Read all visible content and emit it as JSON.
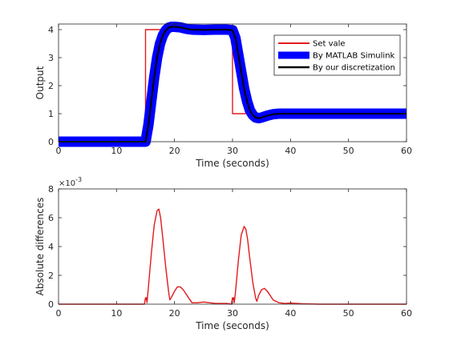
{
  "chart_data": [
    {
      "type": "line",
      "xlabel": "Time (seconds)",
      "ylabel": "Output",
      "xlim": [
        0,
        60
      ],
      "ylim": [
        0,
        4.2
      ],
      "xticks": [
        0,
        10,
        20,
        30,
        40,
        50,
        60
      ],
      "yticks": [
        0,
        1,
        2,
        3,
        4
      ],
      "grid": false,
      "legend_position": "top-right",
      "series": [
        {
          "name": "Set vale",
          "color": "#e41a1c",
          "style": "step",
          "x": [
            0,
            15,
            15,
            30,
            30,
            60
          ],
          "y": [
            0,
            0,
            4,
            4,
            1,
            1
          ]
        },
        {
          "name": "By MATLAB Simulink",
          "color": "#0000ff",
          "style": "thick",
          "x": [
            0,
            15,
            15.5,
            16,
            16.5,
            17,
            17.5,
            18,
            18.5,
            19,
            19.5,
            20,
            21,
            22,
            23,
            25,
            27,
            29,
            30,
            30.5,
            31,
            31.5,
            32,
            32.5,
            33,
            33.5,
            34,
            34.5,
            35,
            36,
            37,
            38,
            40,
            45,
            50,
            55,
            60
          ],
          "y": [
            0,
            0,
            0.6,
            1.45,
            2.3,
            3.0,
            3.5,
            3.8,
            3.98,
            4.07,
            4.1,
            4.1,
            4.08,
            4.03,
            4.0,
            3.99,
            4.0,
            4.0,
            3.98,
            3.7,
            3.1,
            2.5,
            1.9,
            1.45,
            1.12,
            0.95,
            0.86,
            0.84,
            0.86,
            0.93,
            0.98,
            1.0,
            1.0,
            1.0,
            1.0,
            1.0,
            1.0
          ]
        },
        {
          "name": "By our discretization",
          "color": "#000000",
          "style": "thin",
          "x": [
            0,
            15,
            15.5,
            16,
            16.5,
            17,
            17.5,
            18,
            18.5,
            19,
            19.5,
            20,
            21,
            22,
            23,
            25,
            27,
            29,
            30,
            30.5,
            31,
            31.5,
            32,
            32.5,
            33,
            33.5,
            34,
            34.5,
            35,
            36,
            37,
            38,
            40,
            45,
            50,
            55,
            60
          ],
          "y": [
            0,
            0,
            0.6,
            1.45,
            2.3,
            3.0,
            3.5,
            3.8,
            3.98,
            4.07,
            4.1,
            4.1,
            4.08,
            4.03,
            4.0,
            3.99,
            4.0,
            4.0,
            3.98,
            3.7,
            3.1,
            2.5,
            1.9,
            1.45,
            1.12,
            0.95,
            0.86,
            0.84,
            0.86,
            0.93,
            0.98,
            1.0,
            1.0,
            1.0,
            1.0,
            1.0,
            1.0
          ]
        }
      ]
    },
    {
      "type": "line",
      "xlabel": "Time (seconds)",
      "ylabel": "Absolute differences",
      "y_exponent_label": "×10",
      "y_exponent": "-3",
      "xlim": [
        0,
        60
      ],
      "ylim": [
        0,
        0.008
      ],
      "xticks": [
        0,
        10,
        20,
        30,
        40,
        50,
        60
      ],
      "yticks": [
        0,
        0.002,
        0.004,
        0.006,
        0.008
      ],
      "ytick_labels": [
        "0",
        "2",
        "4",
        "6",
        "8"
      ],
      "grid": false,
      "series": [
        {
          "color": "#e41a1c",
          "x": [
            0,
            14.8,
            15,
            15.1,
            15.2,
            15.25,
            15.3,
            15.5,
            16,
            16.5,
            17,
            17.3,
            17.6,
            18,
            18.5,
            19,
            19.2,
            19.5,
            20,
            20.5,
            21,
            21.5,
            22,
            22.5,
            23,
            24,
            25,
            26,
            27,
            28,
            29,
            29.8,
            30,
            30.1,
            30.2,
            30.3,
            30.5,
            31,
            31.5,
            32,
            32.3,
            32.6,
            33,
            33.5,
            34,
            34.2,
            34.5,
            35,
            35.5,
            36,
            36.5,
            37,
            38,
            39,
            40,
            42,
            45,
            50,
            55,
            60
          ],
          "y": [
            0,
            0,
            0.00045,
            0.0003,
            0.00045,
            0.0001,
            0.0003,
            0.0012,
            0.0035,
            0.0055,
            0.0065,
            0.0066,
            0.006,
            0.0045,
            0.0025,
            0.0008,
            0.0003,
            0.0005,
            0.0009,
            0.0012,
            0.0012,
            0.001,
            0.0007,
            0.0004,
            0.0001,
            0.0001,
            0.00015,
            0.0001,
            5e-05,
            5e-05,
            5e-05,
            0,
            0.00045,
            0.0003,
            0.00045,
            0.0001,
            0.0008,
            0.003,
            0.0048,
            0.0054,
            0.0052,
            0.0045,
            0.0031,
            0.0015,
            0.0004,
            0.0002,
            0.0006,
            0.001,
            0.0011,
            0.0009,
            0.0006,
            0.0003,
            0.0001,
            5e-05,
            8e-05,
            3e-05,
            0,
            0,
            0,
            0
          ]
        }
      ]
    }
  ],
  "legend": {
    "entries": [
      "Set vale",
      "By MATLAB Simulink",
      "By our discretization"
    ]
  }
}
